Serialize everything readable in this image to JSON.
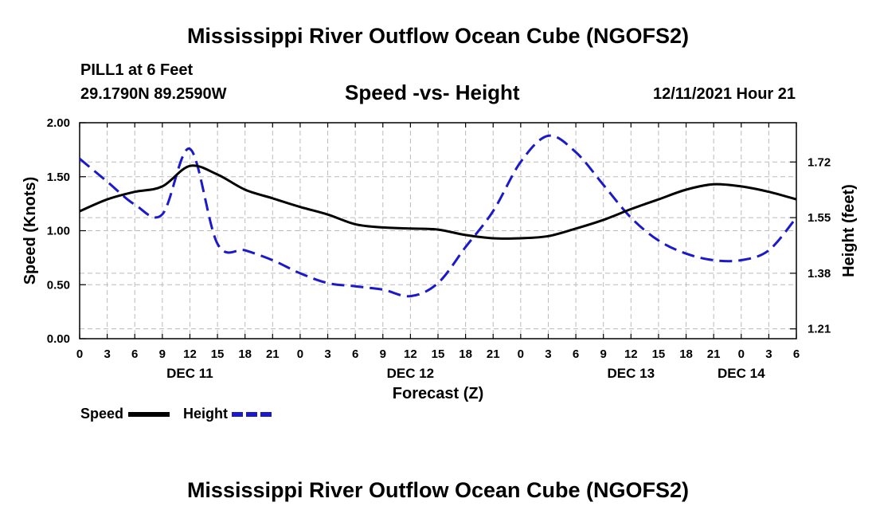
{
  "header": {
    "title": "Mississippi River Outflow Ocean Cube (NGOFS2)",
    "station": "PILL1 at 6 Feet",
    "coords": "29.1790N  89.2590W",
    "subtitle": "Speed -vs- Height",
    "timestamp": "12/11/2021 Hour 21"
  },
  "footer": {
    "title": "Mississippi River Outflow Ocean Cube (NGOFS2)"
  },
  "legend": {
    "speed_label": "Speed",
    "height_label": "Height"
  },
  "colors": {
    "speed": "#000000",
    "height": "#1a1acc",
    "grid": "#bbbbbb"
  },
  "chart_data": {
    "type": "line",
    "title": "Speed -vs- Height",
    "xlabel": "Forecast (Z)",
    "ylabel": "Speed (Knots)",
    "y2label": "Height (feet)",
    "x_tick_labels": [
      "0",
      "3",
      "6",
      "9",
      "12",
      "15",
      "18",
      "21",
      "0",
      "3",
      "6",
      "9",
      "12",
      "15",
      "18",
      "21",
      "0",
      "3",
      "6",
      "9",
      "12",
      "15",
      "18",
      "21",
      "0",
      "3",
      "6"
    ],
    "day_labels": [
      {
        "label": "DEC 11",
        "hour": 12
      },
      {
        "label": "DEC 12",
        "hour": 36
      },
      {
        "label": "DEC 13",
        "hour": 60
      },
      {
        "label": "DEC 14",
        "hour": 72
      }
    ],
    "x": [
      0,
      3,
      6,
      9,
      12,
      15,
      18,
      21,
      24,
      27,
      30,
      33,
      36,
      39,
      42,
      45,
      48,
      51,
      54,
      57,
      60,
      63,
      66,
      69,
      72,
      75,
      78
    ],
    "xlim": [
      0,
      78
    ],
    "ylim": [
      0,
      2
    ],
    "y_ticks": [
      "0.00",
      "0.50",
      "1.00",
      "1.50",
      "2.00"
    ],
    "y2lim": [
      1.18,
      1.84
    ],
    "y2_ticks": [
      "1.21",
      "1.38",
      "1.55",
      "1.72"
    ],
    "series": [
      {
        "name": "Speed",
        "axis": "left",
        "style": "solid",
        "values": [
          1.18,
          1.29,
          1.36,
          1.41,
          1.6,
          1.52,
          1.38,
          1.3,
          1.22,
          1.15,
          1.06,
          1.03,
          1.02,
          1.01,
          0.96,
          0.93,
          0.93,
          0.95,
          1.02,
          1.1,
          1.2,
          1.29,
          1.38,
          1.43,
          1.41,
          1.36,
          1.29
        ]
      },
      {
        "name": "Height",
        "axis": "right",
        "style": "dashed",
        "values": [
          1.73,
          1.66,
          1.59,
          1.56,
          1.76,
          1.47,
          1.45,
          1.42,
          1.38,
          1.35,
          1.34,
          1.33,
          1.31,
          1.35,
          1.46,
          1.57,
          1.72,
          1.8,
          1.75,
          1.65,
          1.55,
          1.48,
          1.44,
          1.42,
          1.42,
          1.45,
          1.55
        ]
      }
    ]
  }
}
